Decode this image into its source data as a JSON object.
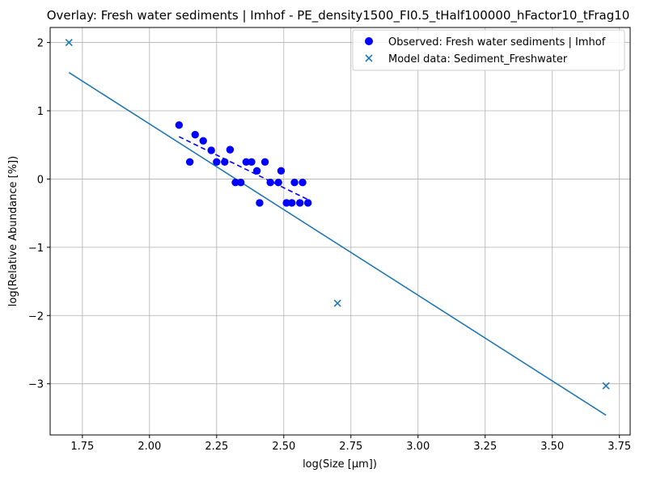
{
  "chart_data": {
    "type": "scatter",
    "title": "Overlay: Fresh water sediments | Imhof - PE_density1500_FI0.5_tHalf100000_hFactor10_tFrag10",
    "xlabel": "log(Size [µm])",
    "ylabel": "log(Relative Abundance [%])",
    "xlim": [
      1.63,
      3.79
    ],
    "ylim": [
      -3.75,
      2.22
    ],
    "x_ticks": [
      1.75,
      2.0,
      2.25,
      2.5,
      2.75,
      3.0,
      3.25,
      3.5,
      3.75
    ],
    "x_tick_labels": [
      "1.75",
      "2.00",
      "2.25",
      "2.50",
      "2.75",
      "3.00",
      "3.25",
      "3.50",
      "3.75"
    ],
    "y_ticks": [
      2,
      1,
      0,
      -1,
      -2,
      -3
    ],
    "y_tick_labels": [
      "2",
      "1",
      "0",
      "−1",
      "−2",
      "−3"
    ],
    "grid": true,
    "legend_position": "top-right",
    "colors": {
      "observed": "#0000ff",
      "model": "#1f77b4",
      "grid": "#b0b0b0"
    },
    "series": [
      {
        "name": "Observed: Fresh water sediments | Imhof",
        "kind": "scatter",
        "marker": "circle",
        "points": [
          [
            2.11,
            0.79
          ],
          [
            2.15,
            0.25
          ],
          [
            2.17,
            0.65
          ],
          [
            2.2,
            0.56
          ],
          [
            2.23,
            0.42
          ],
          [
            2.25,
            0.25
          ],
          [
            2.28,
            0.25
          ],
          [
            2.3,
            0.43
          ],
          [
            2.32,
            -0.05
          ],
          [
            2.34,
            -0.05
          ],
          [
            2.36,
            0.25
          ],
          [
            2.38,
            0.25
          ],
          [
            2.4,
            0.12
          ],
          [
            2.41,
            -0.35
          ],
          [
            2.43,
            0.25
          ],
          [
            2.45,
            -0.05
          ],
          [
            2.48,
            -0.05
          ],
          [
            2.49,
            0.12
          ],
          [
            2.51,
            -0.35
          ],
          [
            2.53,
            -0.35
          ],
          [
            2.54,
            -0.05
          ],
          [
            2.56,
            -0.35
          ],
          [
            2.57,
            -0.05
          ],
          [
            2.59,
            -0.35
          ]
        ]
      },
      {
        "name": "Observed fit",
        "kind": "line",
        "style": "dashed",
        "points": [
          [
            2.11,
            0.62
          ],
          [
            2.6,
            -0.32
          ]
        ]
      },
      {
        "name": "Model data: Sediment_Freshwater",
        "kind": "scatter",
        "marker": "x",
        "points": [
          [
            1.7,
            2.0
          ],
          [
            2.7,
            -1.82
          ],
          [
            3.7,
            -3.03
          ]
        ]
      },
      {
        "name": "Model fit",
        "kind": "line",
        "style": "solid",
        "points": [
          [
            1.7,
            1.56
          ],
          [
            3.7,
            -3.46
          ]
        ]
      }
    ],
    "legend": [
      {
        "label": "Observed: Fresh water sediments | Imhof",
        "marker": "circle"
      },
      {
        "label": "Model data: Sediment_Freshwater",
        "marker": "x"
      }
    ]
  }
}
